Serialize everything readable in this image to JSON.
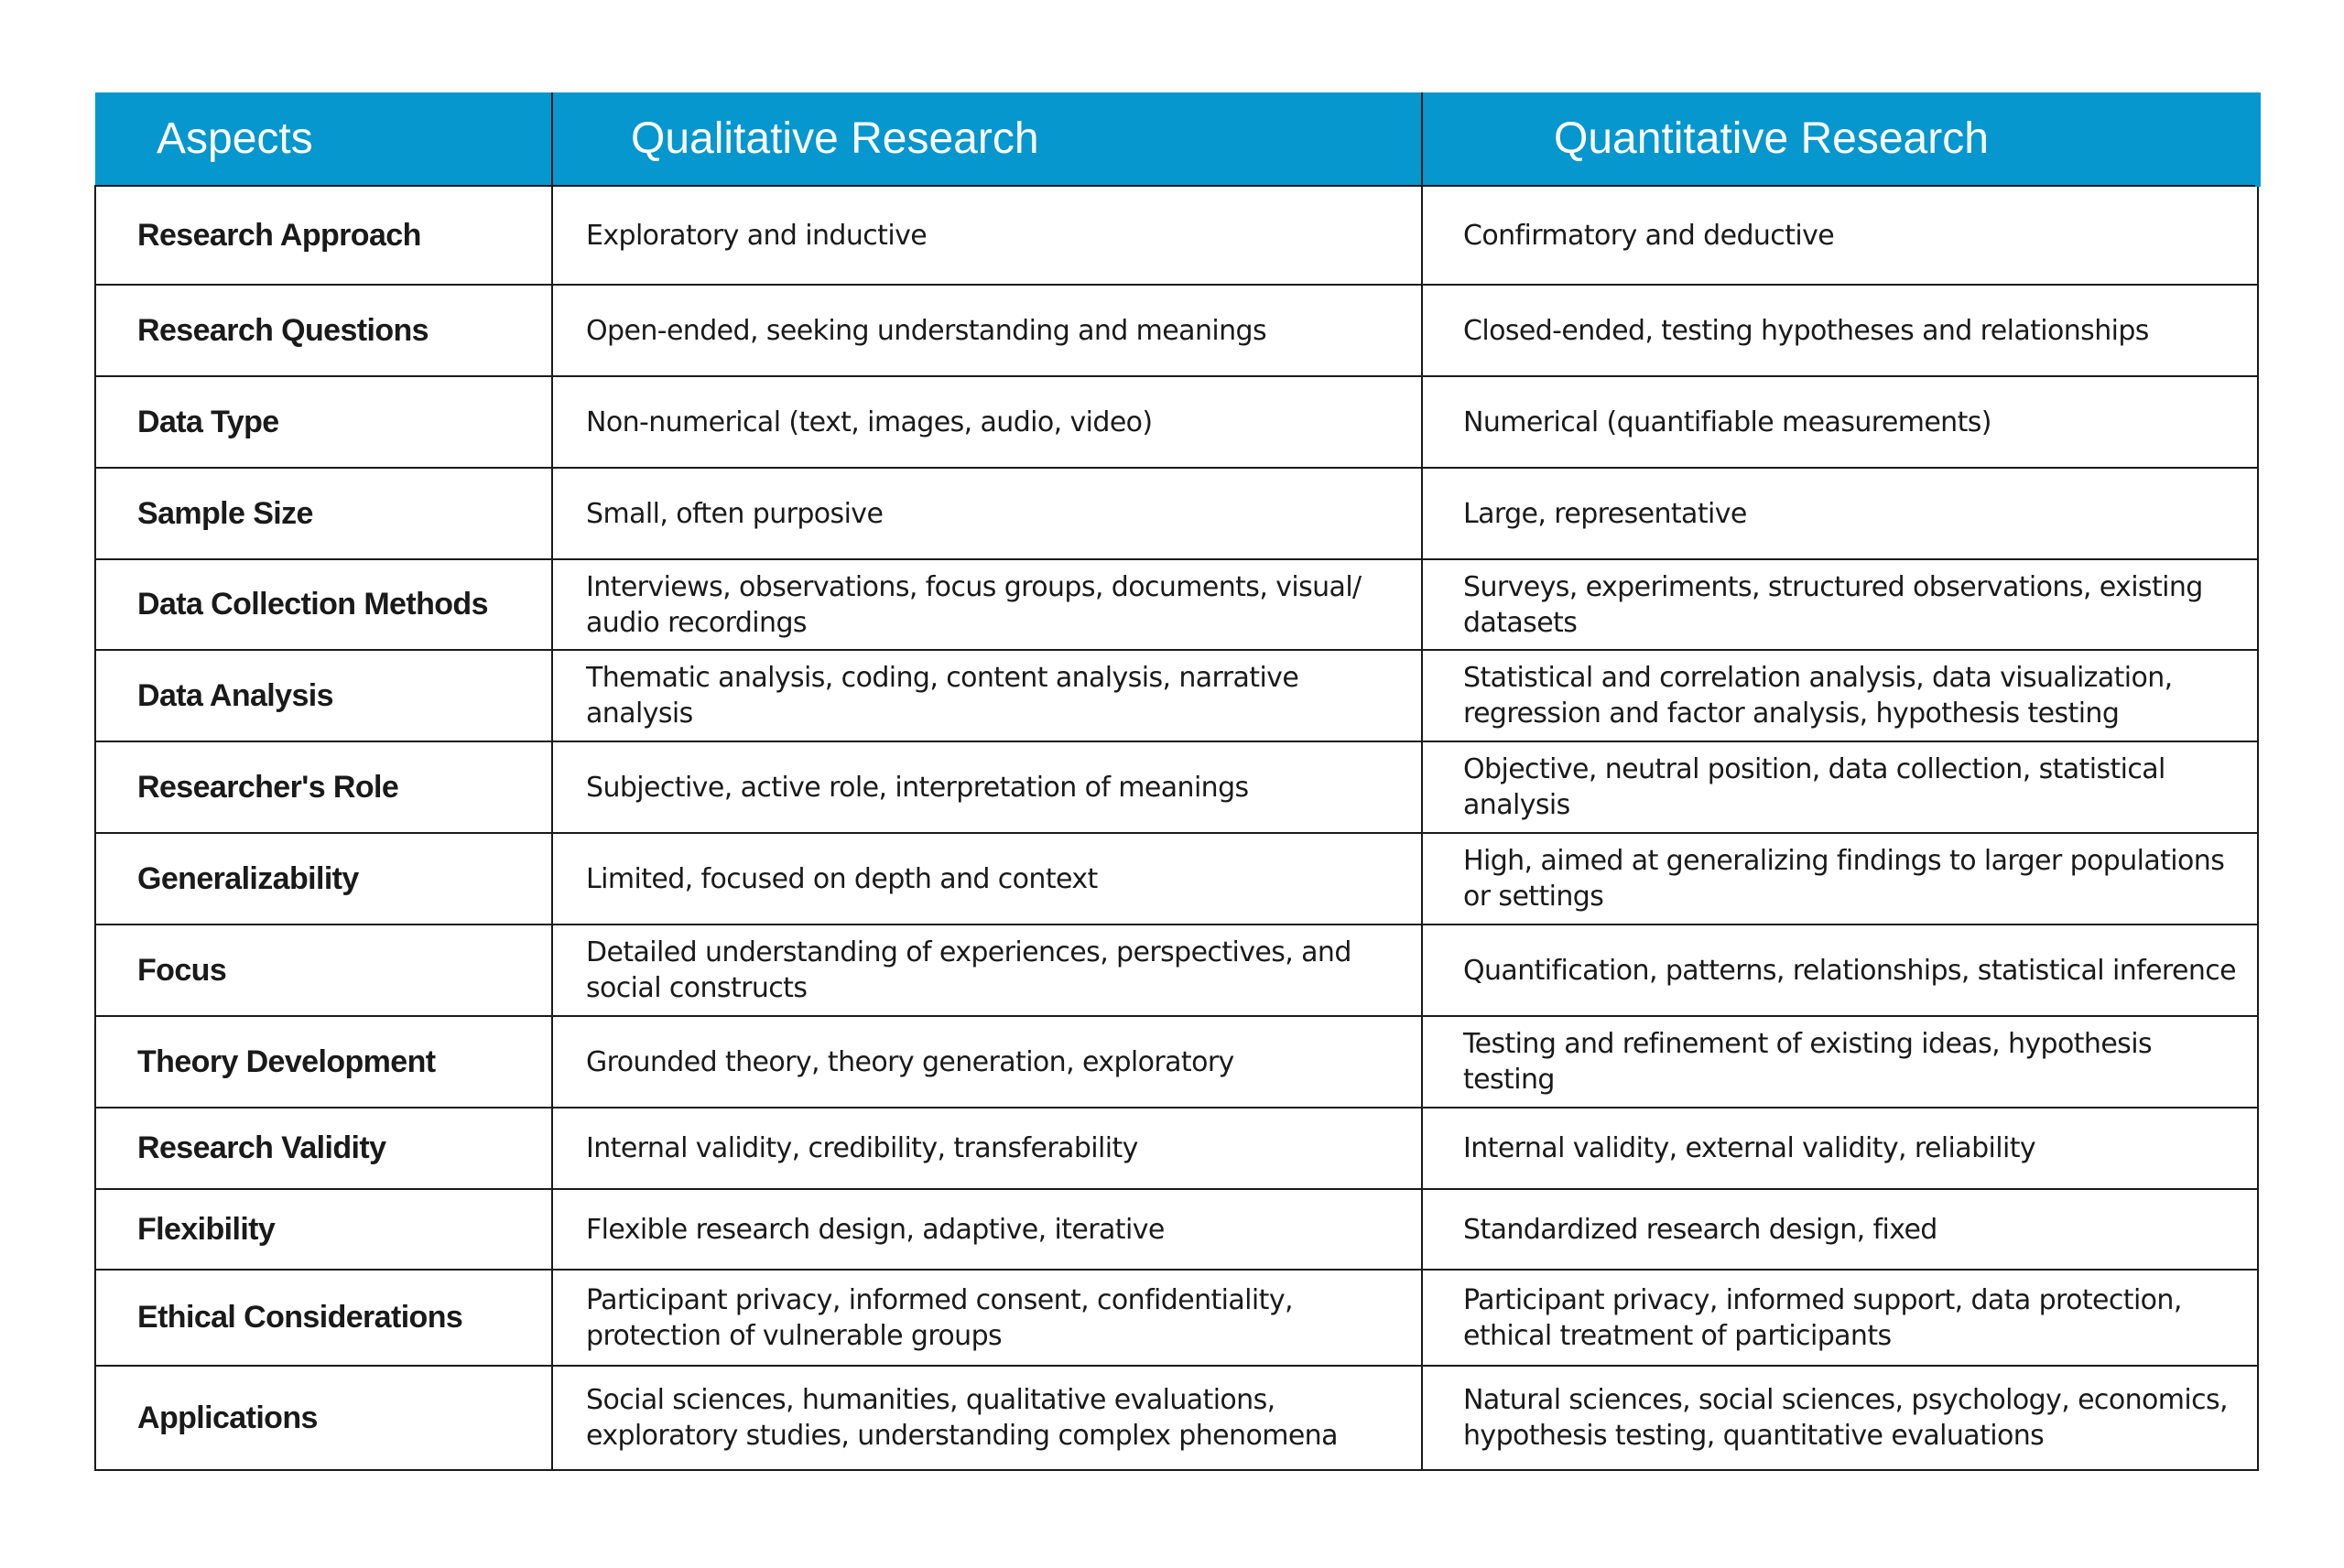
{
  "headers": {
    "aspects": "Aspects",
    "qualitative": "Qualitative Research",
    "quantitative": "Quantitative Research"
  },
  "colors": {
    "header_background": "#0597cd",
    "header_text": "#ffffff",
    "border": "#1a1a1a"
  },
  "rows": [
    {
      "aspect": "Research Approach",
      "qualitative": "Exploratory and inductive",
      "quantitative": "Confirmatory and deductive"
    },
    {
      "aspect": "Research Questions",
      "qualitative": "Open-ended, seeking understanding and meanings",
      "quantitative": "Closed-ended, testing hypotheses and relationships"
    },
    {
      "aspect": "Data Type",
      "qualitative": "Non-numerical (text, images, audio, video)",
      "quantitative": "Numerical (quantifiable measurements)"
    },
    {
      "aspect": "Sample Size",
      "qualitative": "Small, often purposive",
      "quantitative": "Large, representative"
    },
    {
      "aspect": "Data Collection Methods",
      "qualitative": "Interviews, observations, focus groups, documents, visual/ audio recordings",
      "quantitative": "Surveys, experiments, structured observations, existing datasets"
    },
    {
      "aspect": "Data Analysis",
      "qualitative": "Thematic analysis, coding, content analysis, narrative analysis",
      "quantitative": "Statistical and correlation analysis, data visualization, regression and factor analysis, hypothesis testing"
    },
    {
      "aspect": "Researcher's Role",
      "qualitative": "Subjective, active role, interpretation of meanings",
      "quantitative": "Objective, neutral position, data collection, statistical analysis"
    },
    {
      "aspect": "Generalizability",
      "qualitative": "Limited, focused on depth and context",
      "quantitative": "High, aimed at generalizing findings to larger populations or settings"
    },
    {
      "aspect": "Focus",
      "qualitative": "Detailed understanding of experiences, perspectives, and social constructs",
      "quantitative": "Quantification, patterns, relationships, statistical inference"
    },
    {
      "aspect": "Theory Development",
      "qualitative": "Grounded theory, theory generation, exploratory",
      "quantitative": "Testing and refinement of existing ideas, hypothesis testing"
    },
    {
      "aspect": "Research Validity",
      "qualitative": "Internal validity, credibility, transferability",
      "quantitative": "Internal validity, external validity, reliability"
    },
    {
      "aspect": "Flexibility",
      "qualitative": "Flexible research design, adaptive, iterative",
      "quantitative": "Standardized research design, fixed"
    },
    {
      "aspect": "Ethical Considerations",
      "qualitative": "Participant privacy, informed consent, confidentiality, protection of vulnerable groups",
      "quantitative": "Participant privacy, informed support, data protection, ethical treatment of participants"
    },
    {
      "aspect": "Applications",
      "qualitative": "Social sciences, humanities, qualitative evaluations, exploratory studies, understanding complex phenomena",
      "quantitative": "Natural sciences, social sciences, psychology, economics, hypothesis testing, quantitative evaluations"
    }
  ]
}
